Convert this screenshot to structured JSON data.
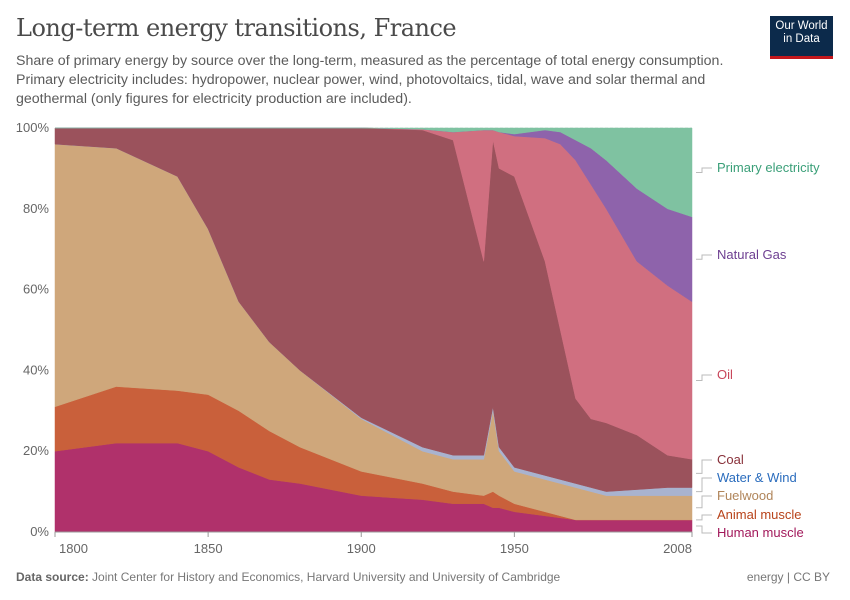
{
  "title": "Long-term energy transitions, France",
  "subtitle": "Share of primary energy by source over the long-term, measured as the percentage of total energy consumption. Primary electricity includes: hydropower, nuclear power, wind, photovoltaics, tidal, wave and solar thermal and geothermal (only figures for electricity production are included).",
  "logo": {
    "line1": "Our World",
    "line2": "in Data"
  },
  "footer": {
    "source_label": "Data source:",
    "source": "Joint Center for History and Economics, Harvard University and University of Cambridge",
    "license": "energy | CC BY"
  },
  "chart_data": {
    "type": "area",
    "stacked": true,
    "title": "Long-term energy transitions, France",
    "xlim": [
      1800,
      2008
    ],
    "ylim": [
      0,
      100
    ],
    "x_ticks": [
      "1800",
      "1850",
      "1900",
      "1950",
      "2008"
    ],
    "y_ticks": [
      "0%",
      "20%",
      "40%",
      "60%",
      "80%",
      "100%"
    ],
    "grid": "horizontal dashed",
    "legend": "right, inline labels",
    "x": [
      1800,
      1820,
      1840,
      1850,
      1860,
      1870,
      1880,
      1900,
      1920,
      1930,
      1940,
      1943,
      1945,
      1950,
      1960,
      1965,
      1970,
      1975,
      1980,
      1990,
      2000,
      2008
    ],
    "series": [
      {
        "name": "Human muscle",
        "color": "#b0316b",
        "label_color": "#a2195b",
        "values": [
          20,
          22,
          22,
          20,
          16,
          13,
          12,
          9,
          8,
          7,
          7,
          6,
          6,
          5,
          4,
          3.5,
          3,
          3,
          3,
          3,
          3,
          3
        ]
      },
      {
        "name": "Animal muscle",
        "color": "#c9603b",
        "label_color": "#b8431a",
        "values": [
          11,
          14,
          13,
          14,
          14,
          12,
          9,
          6,
          4,
          3,
          2,
          4,
          3,
          2,
          1,
          0.5,
          0,
          0,
          0,
          0,
          0,
          0
        ]
      },
      {
        "name": "Fuelwood",
        "color": "#cfa77b",
        "label_color": "#b0855a",
        "values": [
          65,
          59,
          53,
          41,
          27,
          22,
          19,
          13,
          8,
          8,
          9,
          20,
          11,
          8,
          8,
          8,
          8,
          7,
          6,
          6,
          6,
          6
        ]
      },
      {
        "name": "Water & Wind",
        "color": "#a9b3cf",
        "label_color": "#2a6cbd",
        "values": [
          0,
          0,
          0,
          0,
          0,
          0,
          0,
          0.3,
          1,
          1,
          1,
          1,
          1,
          1,
          1,
          1,
          1,
          1,
          1,
          1.5,
          2,
          2
        ]
      },
      {
        "name": "Coal",
        "color": "#9b525c",
        "label_color": "#883039",
        "values": [
          4,
          5,
          12,
          25,
          43,
          53,
          60,
          71.7,
          78.5,
          78,
          48,
          66,
          69,
          72,
          53,
          37,
          21,
          17,
          17,
          13.5,
          8,
          7
        ]
      },
      {
        "name": "Oil",
        "color": "#d06f80",
        "label_color": "#c8465a",
        "values": [
          0,
          0,
          0,
          0,
          0,
          0,
          0,
          0,
          0.2,
          2,
          32.5,
          2.5,
          9,
          10,
          30.5,
          46,
          59,
          58,
          53,
          43,
          42,
          39
        ]
      },
      {
        "name": "Natural Gas",
        "color": "#8e63ab",
        "label_color": "#6d3e91",
        "values": [
          0,
          0,
          0,
          0,
          0,
          0,
          0,
          0,
          0,
          0,
          0,
          0,
          0,
          0.5,
          2,
          3,
          5,
          9,
          12,
          18,
          19,
          21
        ]
      },
      {
        "name": "Primary electricity",
        "color": "#7fc2a1",
        "label_color": "#3a9f78",
        "values": [
          0,
          0,
          0,
          0,
          0,
          0,
          0,
          0,
          0.3,
          1,
          0.5,
          0.5,
          1,
          1.5,
          0.5,
          1,
          3,
          5,
          8,
          15,
          20,
          22
        ]
      }
    ]
  }
}
